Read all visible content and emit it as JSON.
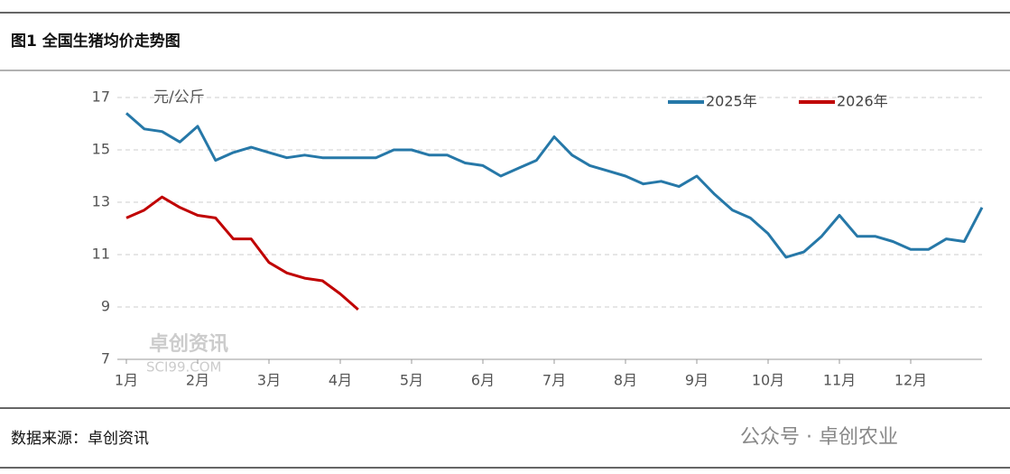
{
  "header": {
    "title": "图1 全国生猪均价走势图"
  },
  "chart_data": {
    "type": "line",
    "y_label": "元/公斤",
    "categories": [
      "1月",
      null,
      null,
      null,
      "2月",
      null,
      null,
      null,
      "3月",
      null,
      null,
      null,
      "4月",
      null,
      null,
      null,
      "5月",
      null,
      null,
      null,
      "6月",
      null,
      null,
      null,
      "7月",
      null,
      null,
      null,
      "8月",
      null,
      null,
      null,
      "9月",
      null,
      null,
      null,
      "10月",
      null,
      null,
      null,
      "11月",
      null,
      null,
      null,
      "12月",
      null,
      null,
      null,
      null
    ],
    "series": [
      {
        "name": "2025年",
        "color": "#2678a8",
        "values": [
          16.4,
          15.8,
          15.7,
          15.3,
          15.9,
          14.6,
          14.9,
          15.1,
          14.9,
          14.7,
          14.8,
          14.7,
          14.7,
          14.7,
          14.7,
          15.0,
          15.0,
          14.8,
          14.8,
          14.5,
          14.4,
          14.0,
          14.3,
          14.6,
          15.5,
          14.8,
          14.4,
          14.2,
          14.0,
          13.7,
          13.8,
          13.6,
          14.0,
          13.3,
          12.7,
          12.4,
          11.8,
          10.9,
          11.1,
          11.7,
          12.5,
          11.7,
          11.7,
          11.5,
          11.2,
          11.2,
          11.6,
          11.5,
          12.8
        ]
      },
      {
        "name": "2026年",
        "color": "#c00000",
        "values": [
          12.4,
          12.7,
          13.2,
          12.8,
          12.5,
          12.4,
          11.6,
          11.6,
          10.7,
          10.3,
          10.1,
          10.0,
          9.5,
          8.9,
          null,
          null,
          null,
          null,
          null,
          null,
          null,
          null,
          null,
          null,
          null,
          null,
          null,
          null,
          null,
          null,
          null,
          null,
          null,
          null,
          null,
          null,
          null,
          null,
          null,
          null,
          null,
          null,
          null,
          null,
          null,
          null,
          null,
          null,
          null
        ]
      }
    ],
    "ylim": [
      7,
      17
    ],
    "yticks": [
      7,
      9,
      11,
      13,
      15,
      17
    ],
    "grid": true,
    "legend": "top-right"
  },
  "footer": {
    "source": "数据来源：卓创资讯",
    "watermark": "公众号 · 卓创农业",
    "logo": "卓创资讯",
    "logo_url": "SCI99.COM"
  }
}
